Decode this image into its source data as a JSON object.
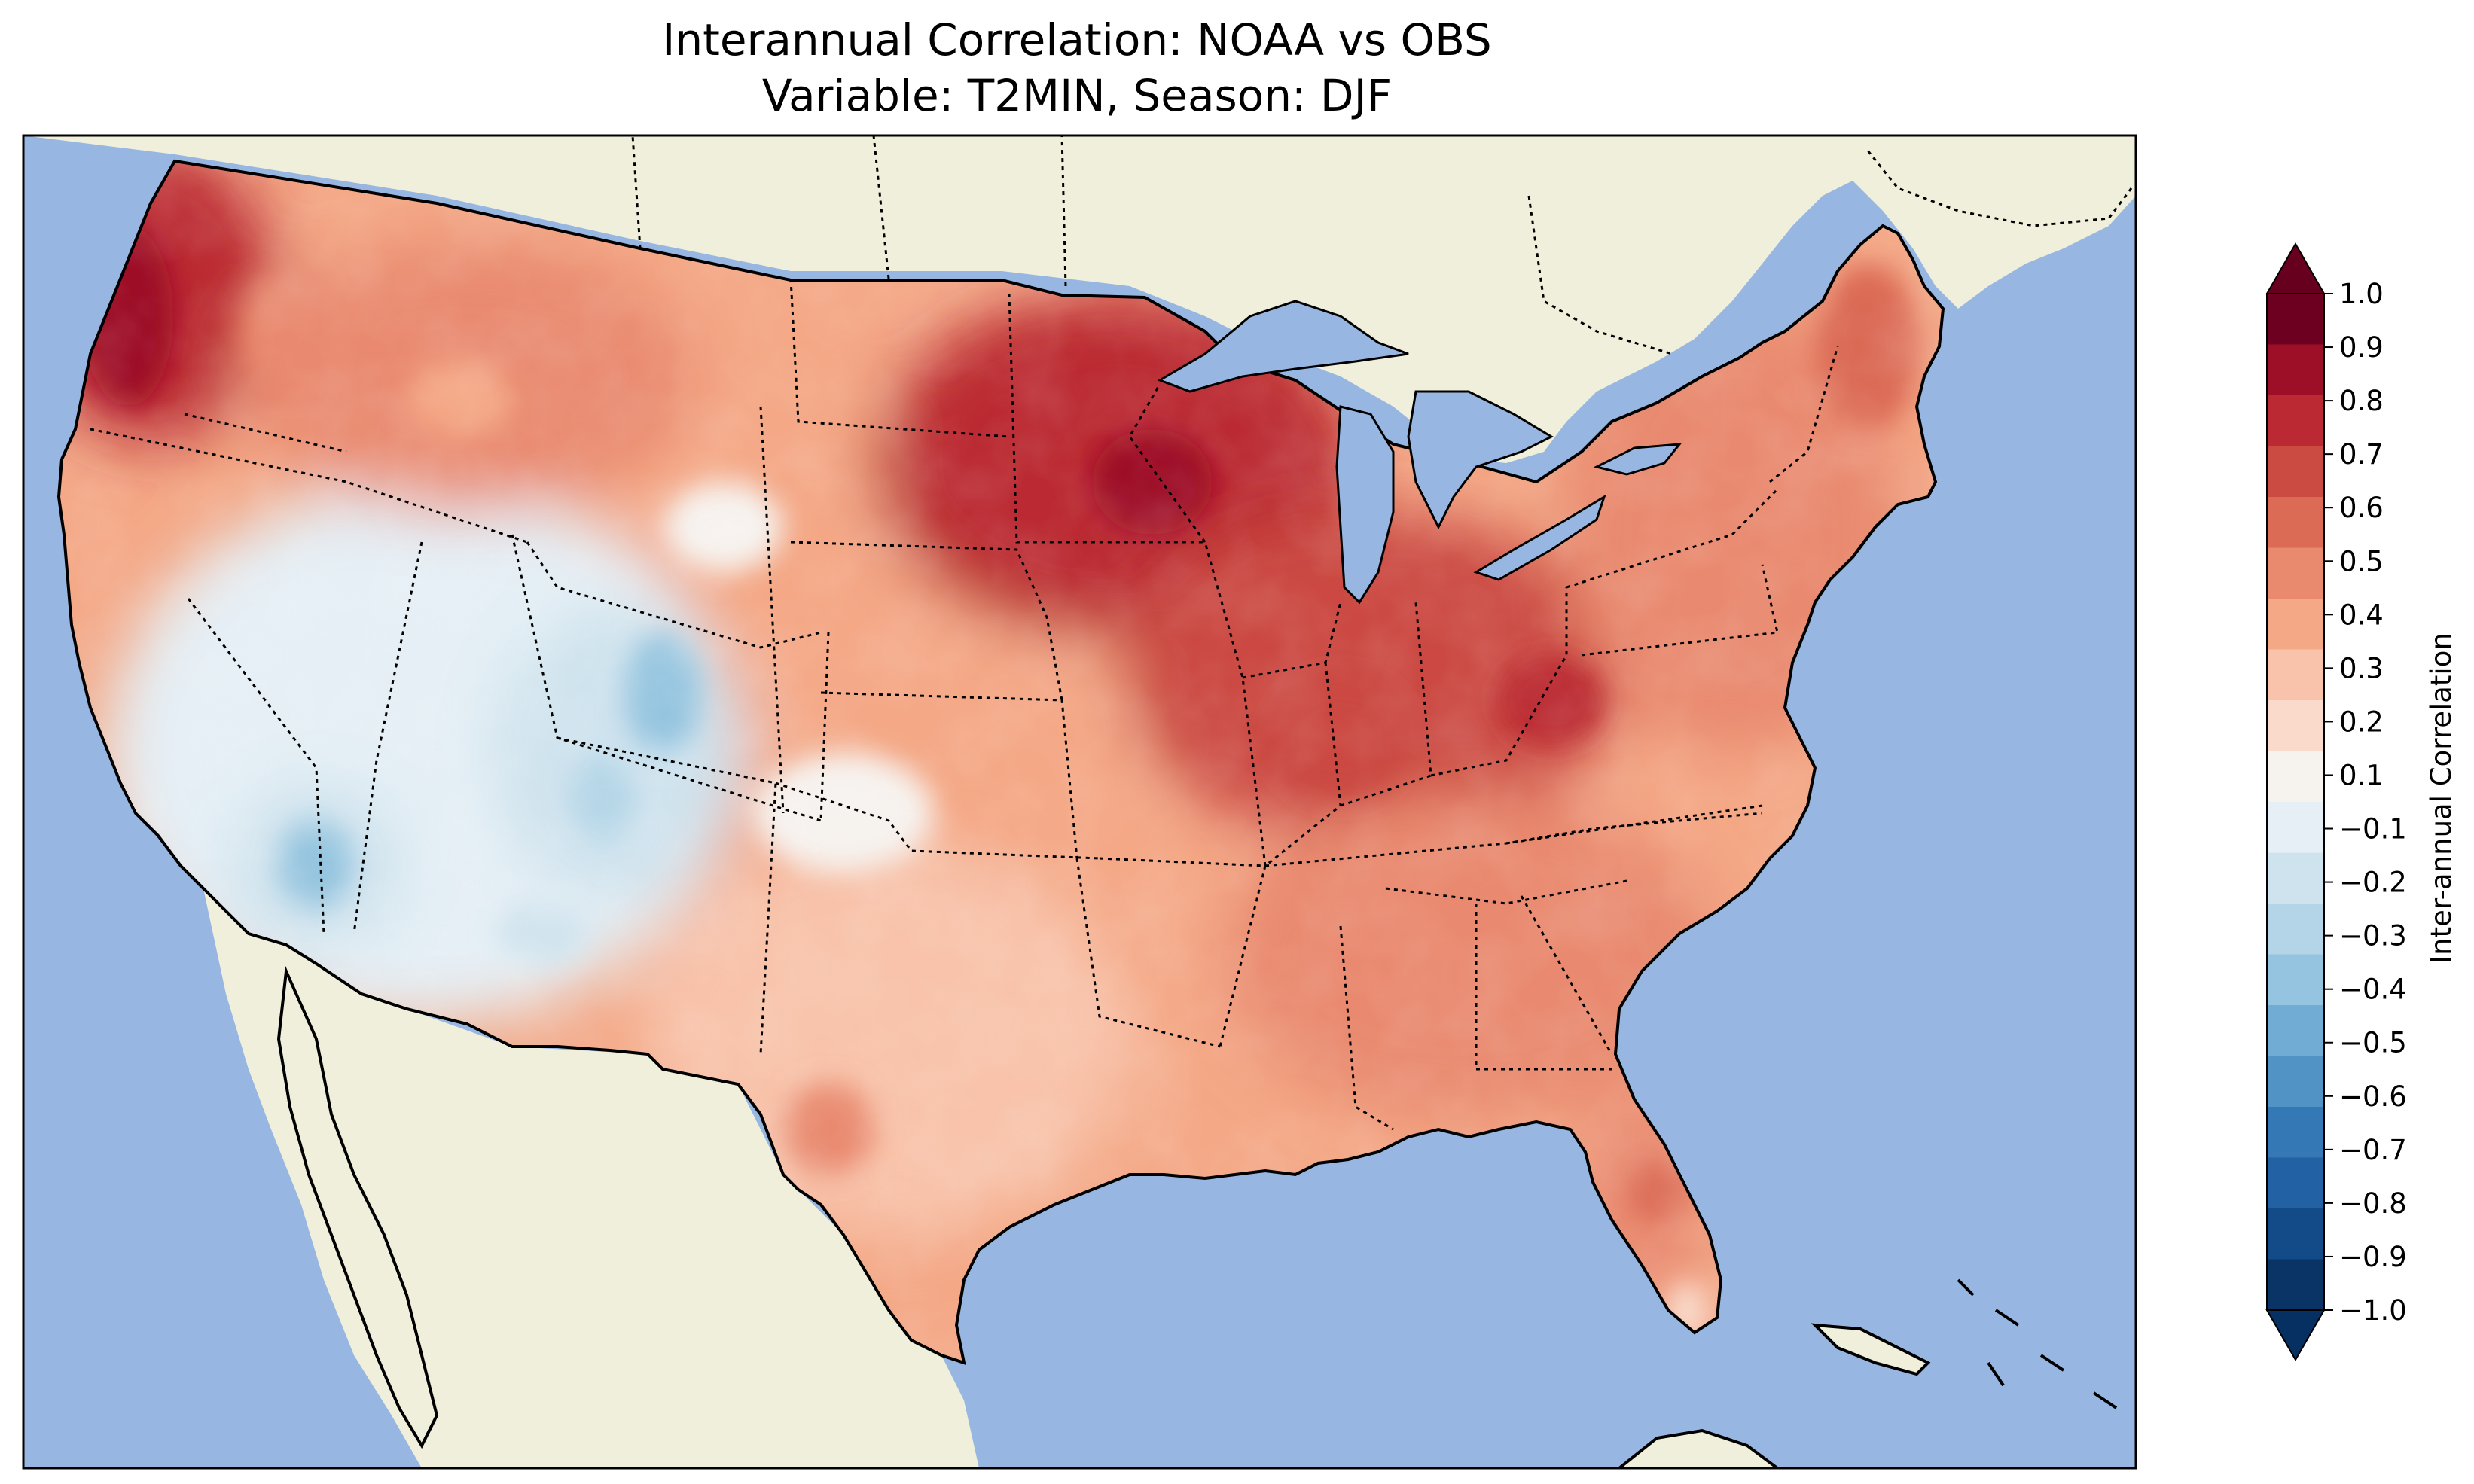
{
  "title": {
    "line1": "Interannual Correlation: NOAA vs OBS",
    "line2": "Variable: T2MIN, Season: DJF"
  },
  "colors": {
    "ocean": "#97b6e1",
    "land": "#efefdb",
    "lakes": "#97b6e1",
    "coast": "#000000",
    "state_border": "#000000"
  },
  "colorbar": {
    "label": "Inter-annual Correlation",
    "ticks": [
      "1.0",
      "0.9",
      "0.8",
      "0.7",
      "0.6",
      "0.5",
      "0.4",
      "0.3",
      "0.2",
      "0.1",
      "−0.1",
      "−0.2",
      "−0.3",
      "−0.4",
      "−0.5",
      "−0.6",
      "−0.7",
      "−0.8",
      "−0.9",
      "−1.0"
    ],
    "levels_colors_top_to_bottom": [
      "#6d0021",
      "#9d0f26",
      "#bb2a32",
      "#cb4a42",
      "#db6b55",
      "#e98a6f",
      "#f4a886",
      "#f8c3aa",
      "#f9dacb",
      "#f6f2ee",
      "#e5eff5",
      "#cfe3ee",
      "#b3d5e7",
      "#94c4df",
      "#71acd4",
      "#5093c4",
      "#3479b6",
      "#2261a3",
      "#134b88",
      "#0a3366"
    ],
    "over_color": "#67001f",
    "under_color": "#053061"
  },
  "map_layers": {
    "regions": [
      {
        "name": "pacific-northwest",
        "level": 0.75
      },
      {
        "name": "northern-rockies",
        "level": 0.45
      },
      {
        "name": "great-basin-southwest",
        "level": 0.0
      },
      {
        "name": "four-corners",
        "level": -0.2
      },
      {
        "name": "great-plains",
        "level": 0.3
      },
      {
        "name": "upper-midwest",
        "level": 0.75
      },
      {
        "name": "midwest-ohio-valley",
        "level": 0.65
      },
      {
        "name": "texas",
        "level": 0.25
      },
      {
        "name": "southeast",
        "level": 0.45
      },
      {
        "name": "northeast",
        "level": 0.5
      },
      {
        "name": "florida",
        "level": 0.5
      }
    ]
  }
}
